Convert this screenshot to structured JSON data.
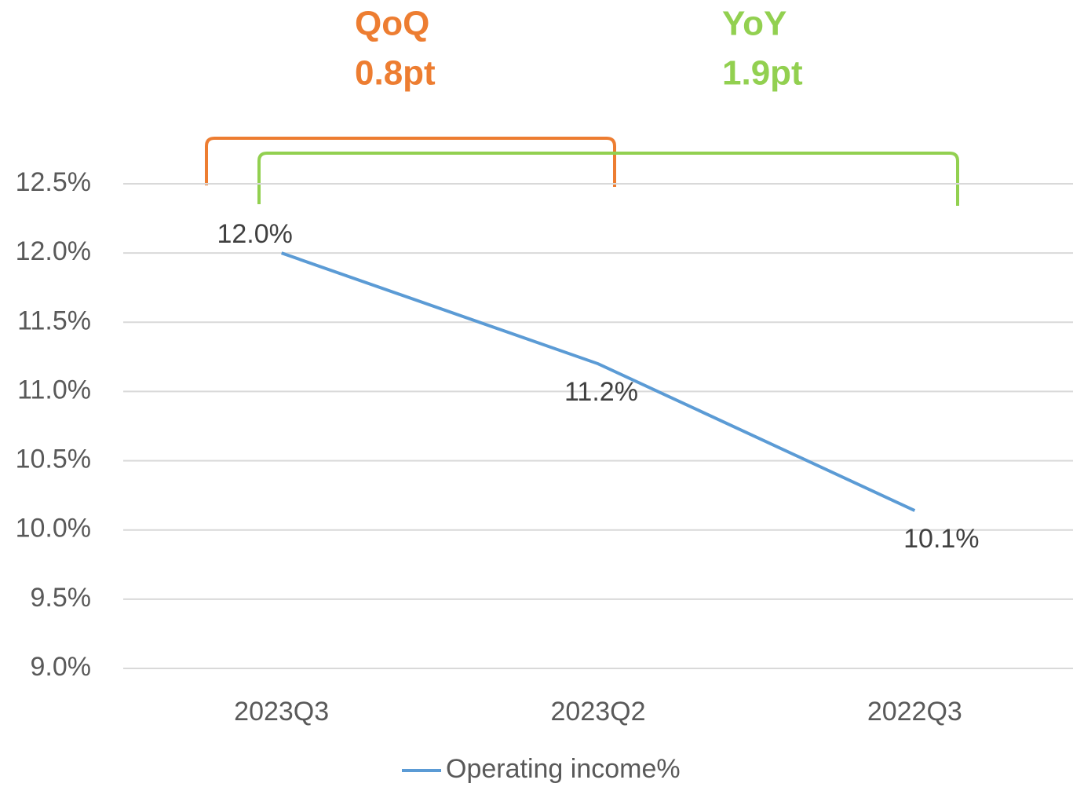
{
  "chart_data": {
    "type": "line",
    "annotations": [
      {
        "text": "QoQ",
        "color": "#ed7d31"
      },
      {
        "text": "0.8pt",
        "color": "#ed7d31"
      },
      {
        "text": "YoY",
        "color": "#92d050"
      },
      {
        "text": "1.9pt",
        "color": "#92d050"
      }
    ],
    "categories": [
      "2023Q3",
      "2023Q2",
      "2022Q3"
    ],
    "series": [
      {
        "name": "Operating income%",
        "color": "#5b9bd5",
        "values": [
          12.0,
          11.2,
          10.14
        ],
        "value_labels": [
          "12.0%",
          "11.2%",
          "10.1%"
        ]
      }
    ],
    "ylim": [
      9.0,
      12.5
    ],
    "yticks": [
      {
        "value": 9.0,
        "label": "9.0%"
      },
      {
        "value": 9.5,
        "label": "9.5%"
      },
      {
        "value": 10.0,
        "label": "10.0%"
      },
      {
        "value": 10.5,
        "label": "10.5%"
      },
      {
        "value": 11.0,
        "label": "11.0%"
      },
      {
        "value": 11.5,
        "label": "11.5%"
      },
      {
        "value": 12.0,
        "label": "12.0%"
      },
      {
        "value": 12.5,
        "label": "12.5%"
      }
    ],
    "grid": true,
    "legend": "bottom"
  }
}
